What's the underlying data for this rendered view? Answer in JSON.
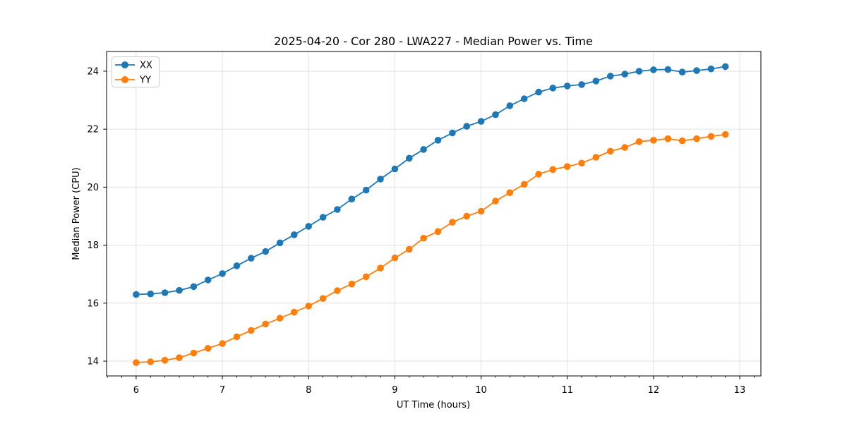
{
  "figure": {
    "background": "#ffffff",
    "axes_background": "#ffffff",
    "grid_color": "#e0e0e0",
    "spine_color": "#000000"
  },
  "chart_data": {
    "type": "line",
    "title": "2025-04-20 - Cor 280 - LWA227 - Median Power vs. Time",
    "xlabel": "UT Time (hours)",
    "ylabel": "Median Power (CPU)",
    "xlim": [
      5.657,
      13.245
    ],
    "ylim": [
      13.49,
      24.68
    ],
    "x_ticks": [
      6,
      7,
      8,
      9,
      10,
      11,
      12,
      13
    ],
    "y_ticks": [
      14,
      16,
      18,
      20,
      22,
      24
    ],
    "x_minor_divisions": 6,
    "grid": true,
    "legend_position": "upper left",
    "x": [
      6.0,
      6.167,
      6.333,
      6.5,
      6.667,
      6.833,
      7.0,
      7.167,
      7.333,
      7.5,
      7.667,
      7.833,
      8.0,
      8.167,
      8.333,
      8.5,
      8.667,
      8.833,
      9.0,
      9.167,
      9.333,
      9.5,
      9.667,
      9.833,
      10.0,
      10.167,
      10.333,
      10.5,
      10.667,
      10.833,
      11.0,
      11.167,
      11.333,
      11.5,
      11.667,
      11.833,
      12.0,
      12.167,
      12.333,
      12.5,
      12.667,
      12.833
    ],
    "series": [
      {
        "name": "XX",
        "color": "#1f77b4",
        "values": [
          16.3,
          16.32,
          16.36,
          16.44,
          16.57,
          16.8,
          17.02,
          17.29,
          17.55,
          17.78,
          18.08,
          18.36,
          18.65,
          18.96,
          19.23,
          19.59,
          19.9,
          20.28,
          20.63,
          21.0,
          21.3,
          21.62,
          21.87,
          22.1,
          22.27,
          22.5,
          22.81,
          23.05,
          23.28,
          23.42,
          23.49,
          23.54,
          23.66,
          23.83,
          23.9,
          24.0,
          24.05,
          24.06,
          23.97,
          24.02,
          24.08,
          24.16
        ]
      },
      {
        "name": "YY",
        "color": "#ff7f0e",
        "values": [
          13.95,
          13.98,
          14.03,
          14.12,
          14.28,
          14.44,
          14.61,
          14.84,
          15.06,
          15.28,
          15.48,
          15.69,
          15.9,
          16.16,
          16.43,
          16.66,
          16.91,
          17.21,
          17.56,
          17.86,
          18.24,
          18.47,
          18.79,
          19.0,
          19.17,
          19.52,
          19.81,
          20.1,
          20.45,
          20.61,
          20.71,
          20.83,
          21.03,
          21.24,
          21.37,
          21.57,
          21.62,
          21.67,
          21.6,
          21.67,
          21.75,
          21.82
        ]
      }
    ]
  }
}
